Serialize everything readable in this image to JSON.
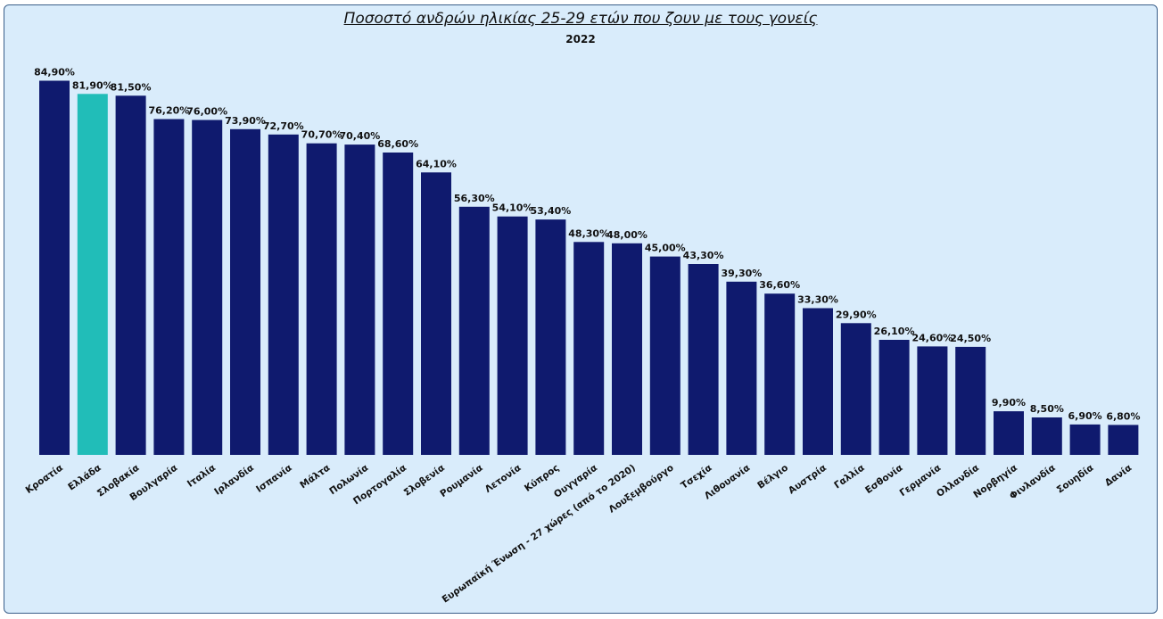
{
  "chart_data": {
    "type": "bar",
    "title": "Ποσοστό ανδρών ηλικίας 25-29 ετών που ζουν με τους γονείς",
    "subtitle": "2022",
    "categories": [
      "Κροατία",
      "Ελλάδα",
      "Σλοβακία",
      "Βουλγαρία",
      "Ιταλία",
      "Ιρλανδία",
      "Ισπανία",
      "Μάλτα",
      "Πολωνία",
      "Πορτογαλία",
      "Σλοβενία",
      "Ρουμανία",
      "Λετονία",
      "Κύπρος",
      "Ουγγαρία",
      "Ευρωπαϊκή Ένωση - 27 χώρες (από το 2020)",
      "Λουξεμβούργο",
      "Τσεχία",
      "Λιθουανία",
      "Βέλγιο",
      "Αυστρία",
      "Γαλλία",
      "Εσθονία",
      "Γερμανία",
      "Ολλανδία",
      "Νορβηγία",
      "Φινλανδία",
      "Σουηδία",
      "Δανία"
    ],
    "values": [
      84.9,
      81.9,
      81.5,
      76.2,
      76.0,
      73.9,
      72.7,
      70.7,
      70.4,
      68.6,
      64.1,
      56.3,
      54.1,
      53.4,
      48.3,
      48.0,
      45.0,
      43.3,
      39.3,
      36.6,
      33.3,
      29.9,
      26.1,
      24.6,
      24.5,
      9.9,
      8.5,
      6.9,
      6.8
    ],
    "value_labels": [
      "84,90%",
      "81,90%",
      "81,50%",
      "76,20%",
      "76,00%",
      "73,90%",
      "72,70%",
      "70,70%",
      "70,40%",
      "68,60%",
      "64,10%",
      "56,30%",
      "54,10%",
      "53,40%",
      "48,30%",
      "48,00%",
      "45,00%",
      "43,30%",
      "39,30%",
      "36,60%",
      "33,30%",
      "29,90%",
      "26,10%",
      "24,60%",
      "24,50%",
      "9,90%",
      "8,50%",
      "6,90%",
      "6,80%"
    ],
    "highlight_category": "Ελλάδα",
    "colors": {
      "bar": "#0f1a6e",
      "highlight": "#21bdb8",
      "background": "#d9ecfb",
      "border": "#3a5f8a"
    },
    "ylim": [
      0,
      85
    ],
    "grid": false,
    "legend": "none"
  }
}
